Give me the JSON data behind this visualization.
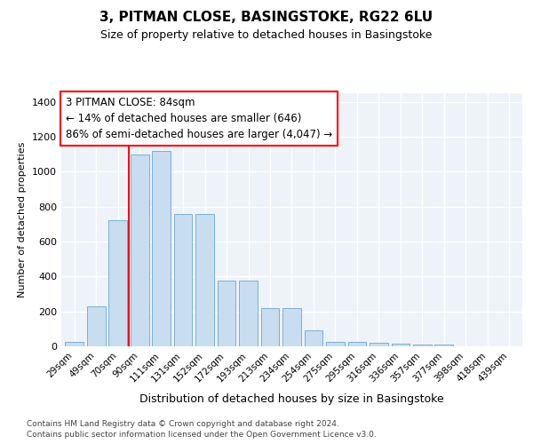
{
  "title1": "3, PITMAN CLOSE, BASINGSTOKE, RG22 6LU",
  "title2": "Size of property relative to detached houses in Basingstoke",
  "xlabel": "Distribution of detached houses by size in Basingstoke",
  "ylabel": "Number of detached properties",
  "categories": [
    "29sqm",
    "49sqm",
    "70sqm",
    "90sqm",
    "111sqm",
    "131sqm",
    "152sqm",
    "172sqm",
    "193sqm",
    "213sqm",
    "234sqm",
    "254sqm",
    "275sqm",
    "295sqm",
    "316sqm",
    "336sqm",
    "357sqm",
    "377sqm",
    "398sqm",
    "418sqm",
    "439sqm"
  ],
  "values": [
    25,
    230,
    720,
    1100,
    1120,
    760,
    760,
    375,
    375,
    220,
    220,
    90,
    25,
    25,
    20,
    15,
    10,
    10,
    0,
    0,
    0
  ],
  "bar_color": "#c8ddf0",
  "bar_edge_color": "#7aafd4",
  "vline_x_index": 2.5,
  "vline_color": "red",
  "annotation_text": "3 PITMAN CLOSE: 84sqm\n← 14% of detached houses are smaller (646)\n86% of semi-detached houses are larger (4,047) →",
  "annotation_box_color": "white",
  "annotation_box_edge_color": "red",
  "ylim": [
    0,
    1450
  ],
  "yticks": [
    0,
    200,
    400,
    600,
    800,
    1000,
    1200,
    1400
  ],
  "footnote1": "Contains HM Land Registry data © Crown copyright and database right 2024.",
  "footnote2": "Contains public sector information licensed under the Open Government Licence v3.0.",
  "bg_color": "#eef2f9",
  "fig_bg_color": "#ffffff",
  "grid_color": "#ffffff"
}
